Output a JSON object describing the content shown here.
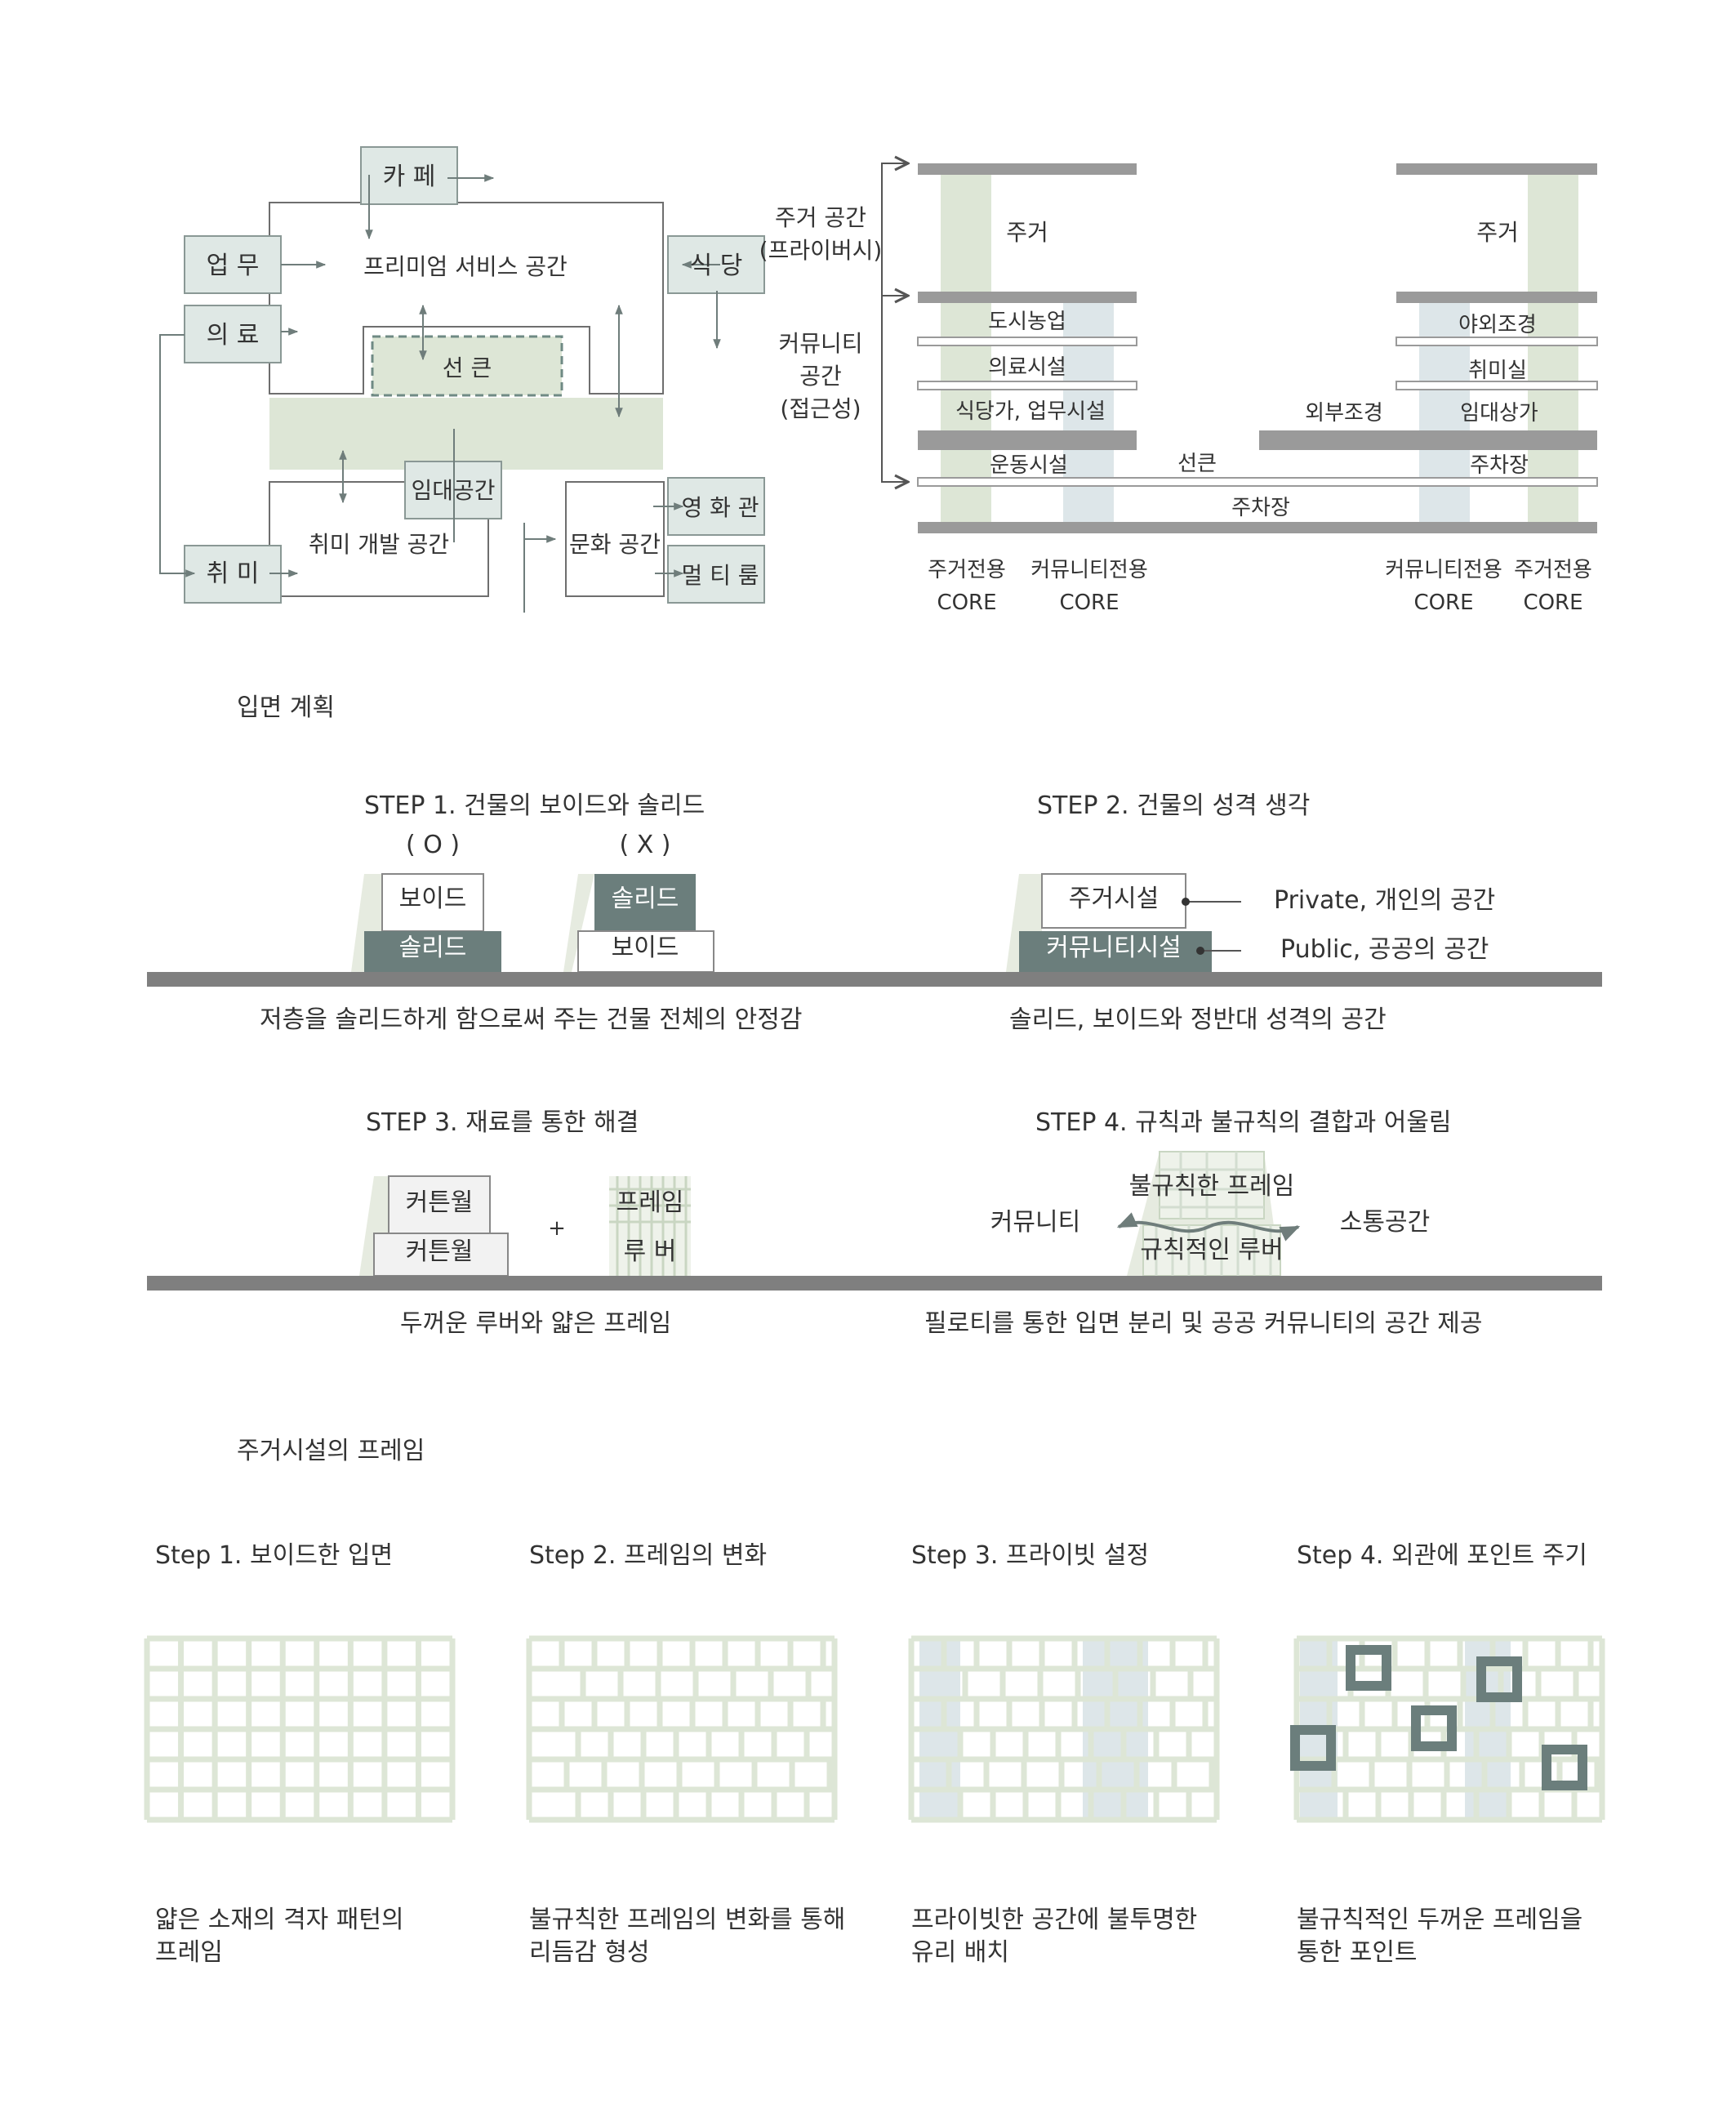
{
  "colors": {
    "mint": "#dde6d6",
    "mint_box": "#dfe8e5",
    "pale_blue": "#dde6e9",
    "grey_bar": "#9a9a9a",
    "dark_teal": "#6b7e7c",
    "ground": "#7f7f7f",
    "arrow": "#6f7d7b"
  },
  "program_diagram": {
    "nodes": {
      "cafe": "카 페",
      "office": "업 무",
      "medical": "의 료",
      "restaurant": "식 당",
      "cinema": "영 화 관",
      "multiroom": "멀 티 룸",
      "hobby": "취 미",
      "rental": "임대공간"
    },
    "zones": {
      "premium": "프리미엄 서비스 공간",
      "seongeun": "선 큰",
      "hobby_dev": "취미 개발 공간",
      "culture": "문화 공간"
    }
  },
  "section_diagram": {
    "side_labels": {
      "residential_l1": "주거 공간",
      "residential_l2": "(프라이버시)",
      "community_l1": "커뮤니티",
      "community_l2": "공간",
      "community_l3": "(접근성)"
    },
    "left": {
      "residential": "주거",
      "farming": "도시농업",
      "medical": "의료시설",
      "restaurant": "식당가, 업무시설",
      "sports": "운동시설"
    },
    "right": {
      "residential": "주거",
      "outdoor_landscape": "야외조경",
      "hobby": "취미실",
      "rental_shops": "임대상가",
      "parking": "주차장"
    },
    "center": {
      "exterior_landscape": "외부조경",
      "sunken": "선큰",
      "parking": "주차장"
    },
    "cores": [
      {
        "l1": "주거전용",
        "l2": "CORE"
      },
      {
        "l1": "커뮤니티전용",
        "l2": "CORE"
      },
      {
        "l1": "커뮤니티전용",
        "l2": "CORE"
      },
      {
        "l1": "주거전용",
        "l2": "CORE"
      }
    ]
  },
  "facade_plan": {
    "heading": "입면 계획",
    "step1": {
      "title": "STEP 1. 건물의 보이드와 솔리드",
      "ok_mark": "( O )",
      "no_mark": "( X )",
      "void": "보이드",
      "solid": "솔리드",
      "caption": "저층을 솔리드하게 함으로써 주는 건물 전체의 안정감"
    },
    "step2": {
      "title": "STEP 2. 건물의 성격 생각",
      "residential": "주거시설",
      "community": "커뮤니티시설",
      "private": "Private, 개인의 공간",
      "public": "Public, 공공의 공간",
      "caption": "솔리드, 보이드와 정반대 성격의 공간"
    },
    "step3": {
      "title": "STEP 3. 재료를 통한 해결",
      "curtain_wall": "커튼월",
      "plus": "+",
      "frame": "프레임",
      "louver": "루 버",
      "caption": "두꺼운 루버와 얇은 프레임"
    },
    "step4": {
      "title": "STEP 4. 규칙과 불규칙의 결합과 어울림",
      "irregular_frame": "불규칙한 프레임",
      "regular_louver": "규칙적인 루버",
      "community": "커뮤니티",
      "communication": "소통공간",
      "caption": "필로티를 통한 입면 분리 및 공공 커뮤니티의 공간 제공"
    }
  },
  "frame_section": {
    "heading": "주거시설의 프레임",
    "steps": [
      {
        "title": "Step 1. 보이드한 입면",
        "cap1": "얇은 소재의 격자 패턴의",
        "cap2": "프레임"
      },
      {
        "title": "Step 2. 프레임의 변화",
        "cap1": "불규칙한 프레임의 변화를 통해",
        "cap2": "리듬감 형성"
      },
      {
        "title": "Step 3. 프라이빗 설정",
        "cap1": "프라이빗한 공간에 불투명한",
        "cap2": "유리 배치"
      },
      {
        "title": "Step 4. 외관에 포인트 주기",
        "cap1": "불규칙적인 두꺼운 프레임을",
        "cap2": "통한 포인트"
      }
    ]
  }
}
